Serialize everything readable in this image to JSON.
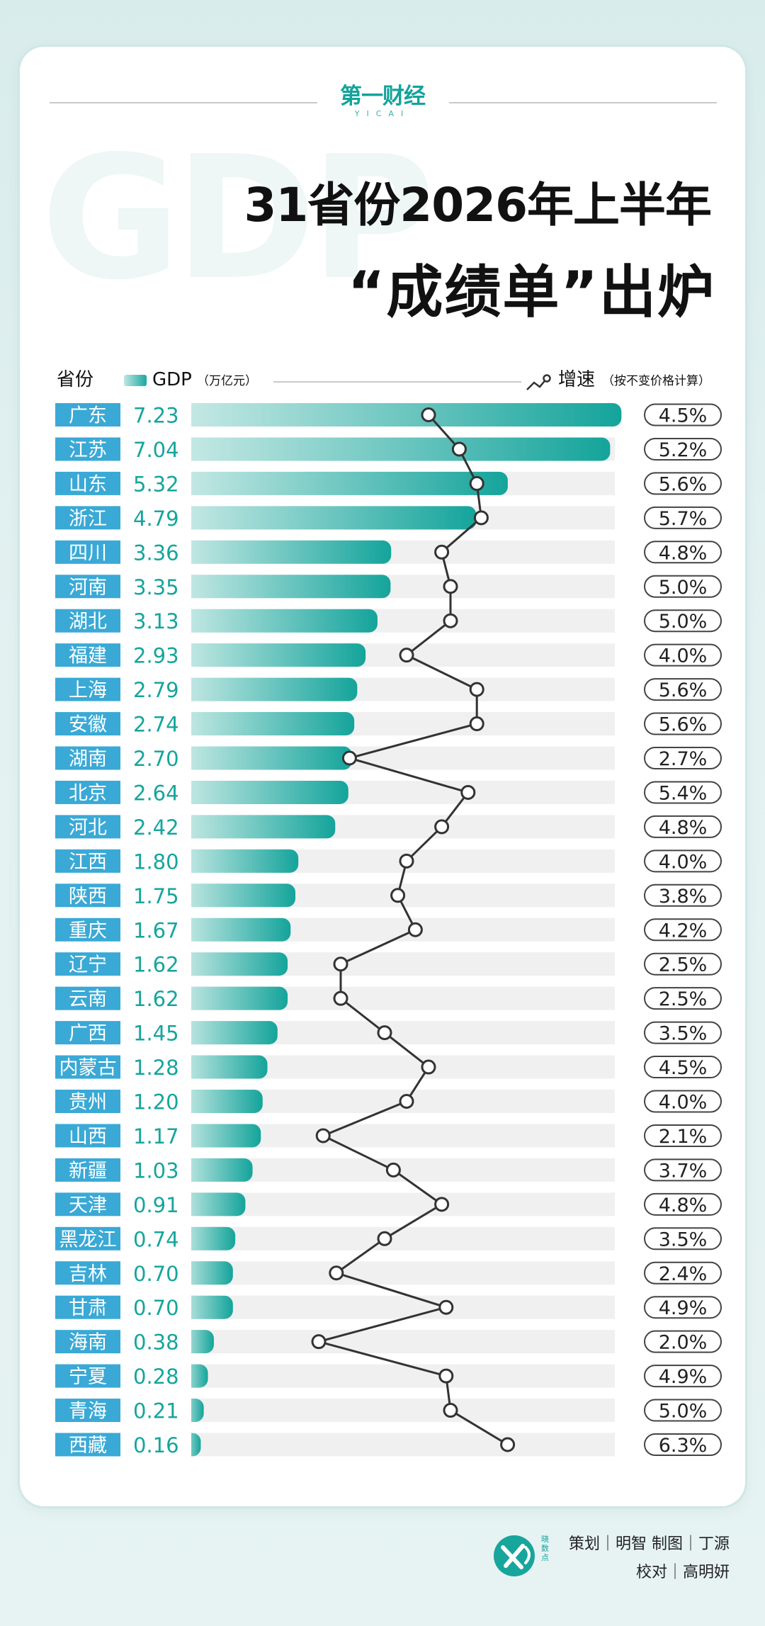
{
  "header": {
    "logo_text": "第一财经",
    "logo_sub": "YICAI",
    "watermark": "GDP",
    "title_line1": "31省份2026年上半年",
    "title_line2": "“成绩单”出炉"
  },
  "legend": {
    "province": "省份",
    "gdp": "GDP",
    "gdp_unit": "（万亿元）",
    "growth": "增速",
    "growth_note": "（按不变价格计算）"
  },
  "colors": {
    "bar_light": "#c7e9e5",
    "bar_dark": "#14a49b",
    "name_bg": "#3aa9d6",
    "gdp_text": "#15a59c",
    "track": "#f0f0f0",
    "line": "#333333"
  },
  "chart_data": {
    "type": "bar",
    "categories": [
      "广东",
      "江苏",
      "山东",
      "浙江",
      "四川",
      "河南",
      "湖北",
      "福建",
      "上海",
      "安徽",
      "湖南",
      "北京",
      "河北",
      "江西",
      "陕西",
      "重庆",
      "辽宁",
      "云南",
      "广西",
      "内蒙古",
      "贵州",
      "山西",
      "新疆",
      "天津",
      "黑龙江",
      "吉林",
      "甘肃",
      "海南",
      "宁夏",
      "青海",
      "西藏"
    ],
    "series": [
      {
        "values": [
          7.23,
          7.04,
          5.32,
          4.79,
          3.36,
          3.35,
          3.13,
          2.93,
          2.79,
          2.74,
          2.7,
          2.64,
          2.42,
          1.8,
          1.75,
          1.67,
          1.62,
          1.62,
          1.45,
          1.28,
          1.2,
          1.17,
          1.03,
          0.91,
          0.74,
          0.7,
          0.7,
          0.38,
          0.28,
          0.21,
          0.16
        ]
      },
      {
        "values": [
          4.5,
          5.2,
          5.6,
          5.7,
          4.8,
          5.0,
          5.0,
          4.0,
          5.6,
          5.6,
          2.7,
          5.4,
          4.8,
          4.0,
          3.8,
          4.2,
          2.5,
          2.5,
          3.5,
          4.5,
          4.0,
          2.1,
          3.7,
          4.8,
          3.5,
          2.4,
          4.9,
          2.0,
          4.9,
          5.0,
          6.3
        ]
      }
    ],
    "labels_gdp": [
      "7.23",
      "7.04",
      "5.32",
      "4.79",
      "3.36",
      "3.35",
      "3.13",
      "2.93",
      "2.79",
      "2.74",
      "2.70",
      "2.64",
      "2.42",
      "1.80",
      "1.75",
      "1.67",
      "1.62",
      "1.62",
      "1.45",
      "1.28",
      "1.20",
      "1.17",
      "1.03",
      "0.91",
      "0.74",
      "0.70",
      "0.70",
      "0.38",
      "0.28",
      "0.21",
      "0.16"
    ],
    "labels_growth": [
      "4.5%",
      "5.2%",
      "5.6%",
      "5.7%",
      "4.8%",
      "5.0%",
      "5.0%",
      "4.0%",
      "5.6%",
      "5.6%",
      "2.7%",
      "5.4%",
      "4.8%",
      "4.0%",
      "3.8%",
      "4.2%",
      "2.5%",
      "2.5%",
      "3.5%",
      "4.5%",
      "4.0%",
      "2.1%",
      "3.7%",
      "4.8%",
      "3.5%",
      "2.4%",
      "4.9%",
      "2.0%",
      "4.9%",
      "5.0%",
      "6.3%"
    ]
  },
  "footer": {
    "logo_text": "晓数点",
    "credit_line1": "策划｜明智  制图｜丁源",
    "credit_line2": "校对｜高明妍"
  }
}
